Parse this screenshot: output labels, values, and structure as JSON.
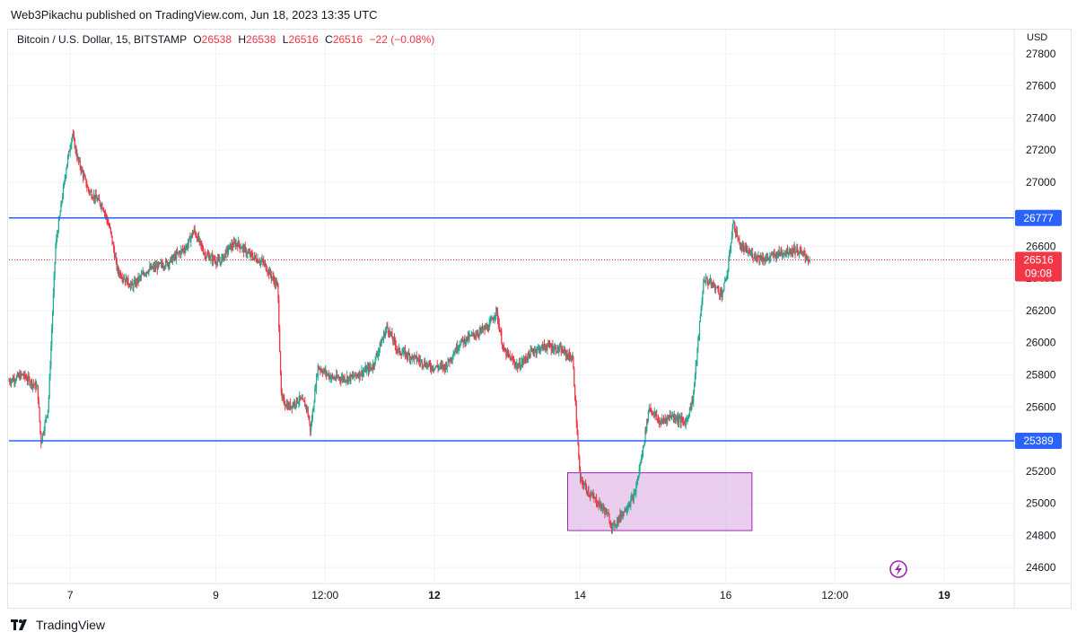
{
  "header": {
    "publisher": "Web3Pikachu published on TradingView.com, Jun 18, 2023 13:35 UTC"
  },
  "legend": {
    "symbol": "Bitcoin / U.S. Dollar, 15, BITSTAMP",
    "o_key": "O",
    "o_val": "26538",
    "h_key": "H",
    "h_val": "26538",
    "l_key": "L",
    "l_val": "26516",
    "c_key": "C",
    "c_val": "26516",
    "change": "−22 (−0.08%)"
  },
  "axis": {
    "currency": "USD"
  },
  "footer": {
    "brand": "TradingView"
  },
  "colors": {
    "up": "#22ab94",
    "down": "#f23645",
    "level": "#2962ff",
    "zone_fill": "#e1bee7",
    "zone_stroke": "#9c27b0"
  },
  "chart_data": {
    "type": "candlestick",
    "symbol": "BTCUSD",
    "interval": "15",
    "ylim": [
      24500,
      27950
    ],
    "y_ticks": [
      24600,
      24800,
      25000,
      25200,
      25400,
      25600,
      25800,
      26000,
      26200,
      26400,
      26600,
      26800,
      27000,
      27200,
      27400,
      27600,
      27800
    ],
    "x_ticks": [
      {
        "label": "7",
        "t": 0.84,
        "bold": false
      },
      {
        "label": "9",
        "t": 2.84,
        "bold": false
      },
      {
        "label": "12:00",
        "t": 4.34,
        "bold": false
      },
      {
        "label": "12",
        "t": 5.84,
        "bold": true
      },
      {
        "label": "14",
        "t": 7.84,
        "bold": false
      },
      {
        "label": "16",
        "t": 9.84,
        "bold": false
      },
      {
        "label": "12:00",
        "t": 11.34,
        "bold": false
      },
      {
        "label": "19",
        "t": 12.84,
        "bold": true
      }
    ],
    "x_range_days": [
      0,
      13.8
    ],
    "horizontal_levels": [
      {
        "price": 26777,
        "label": "26777"
      },
      {
        "price": 25389,
        "label": "25389"
      }
    ],
    "last_price": {
      "price": 26516,
      "label": "26516",
      "countdown": "09:08"
    },
    "zone": {
      "t_start": 7.67,
      "t_end": 10.2,
      "price_low": 24830,
      "price_high": 25190
    },
    "price_path": [
      [
        0.0,
        25760
      ],
      [
        0.2,
        25800
      ],
      [
        0.4,
        25720
      ],
      [
        0.45,
        25380
      ],
      [
        0.55,
        25600
      ],
      [
        0.65,
        26600
      ],
      [
        0.8,
        27100
      ],
      [
        0.88,
        27300
      ],
      [
        0.95,
        27150
      ],
      [
        1.1,
        26950
      ],
      [
        1.3,
        26850
      ],
      [
        1.4,
        26700
      ],
      [
        1.5,
        26450
      ],
      [
        1.7,
        26350
      ],
      [
        1.9,
        26450
      ],
      [
        2.2,
        26500
      ],
      [
        2.45,
        26600
      ],
      [
        2.55,
        26700
      ],
      [
        2.7,
        26550
      ],
      [
        2.9,
        26500
      ],
      [
        3.05,
        26600
      ],
      [
        3.15,
        26620
      ],
      [
        3.3,
        26550
      ],
      [
        3.5,
        26500
      ],
      [
        3.7,
        26350
      ],
      [
        3.75,
        25650
      ],
      [
        3.85,
        25600
      ],
      [
        4.0,
        25650
      ],
      [
        4.1,
        25600
      ],
      [
        4.15,
        25450
      ],
      [
        4.25,
        25850
      ],
      [
        4.45,
        25780
      ],
      [
        4.7,
        25780
      ],
      [
        5.0,
        25850
      ],
      [
        5.2,
        26100
      ],
      [
        5.35,
        25950
      ],
      [
        5.6,
        25900
      ],
      [
        5.8,
        25850
      ],
      [
        6.0,
        25850
      ],
      [
        6.2,
        26000
      ],
      [
        6.4,
        26050
      ],
      [
        6.6,
        26100
      ],
      [
        6.7,
        26200
      ],
      [
        6.8,
        25950
      ],
      [
        7.0,
        25850
      ],
      [
        7.2,
        25950
      ],
      [
        7.4,
        25980
      ],
      [
        7.6,
        25950
      ],
      [
        7.75,
        25900
      ],
      [
        7.85,
        25150
      ],
      [
        8.0,
        25050
      ],
      [
        8.2,
        24950
      ],
      [
        8.3,
        24850
      ],
      [
        8.45,
        24950
      ],
      [
        8.6,
        25050
      ],
      [
        8.7,
        25300
      ],
      [
        8.8,
        25600
      ],
      [
        8.95,
        25500
      ],
      [
        9.1,
        25550
      ],
      [
        9.3,
        25500
      ],
      [
        9.4,
        25650
      ],
      [
        9.55,
        26400
      ],
      [
        9.7,
        26350
      ],
      [
        9.8,
        26300
      ],
      [
        9.88,
        26450
      ],
      [
        9.95,
        26750
      ],
      [
        10.05,
        26600
      ],
      [
        10.2,
        26550
      ],
      [
        10.4,
        26520
      ],
      [
        10.6,
        26560
      ],
      [
        10.8,
        26580
      ],
      [
        10.95,
        26540
      ],
      [
        11.0,
        26516
      ]
    ]
  }
}
